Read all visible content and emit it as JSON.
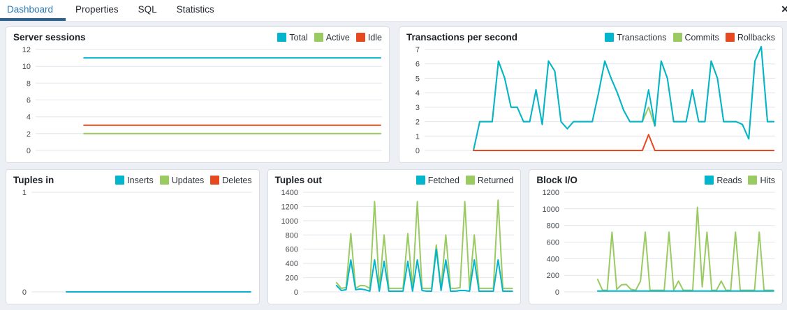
{
  "tabs": {
    "items": [
      {
        "label": "Dashboard"
      },
      {
        "label": "Properties"
      },
      {
        "label": "SQL"
      },
      {
        "label": "Statistics"
      }
    ],
    "active_index": 0,
    "close_icon": "✕"
  },
  "colors": {
    "accent_tab": "#2a77b0",
    "tab_underline": "#2e628c",
    "cyan": "#00b5cc",
    "green": "#9aca62",
    "red": "#e5491d",
    "grid": "#e2e5ee",
    "axis_text": "#43484d"
  },
  "panels": [
    {
      "title": "Server sessions",
      "legend": [
        {
          "label": "Total",
          "color": "#00b5cc"
        },
        {
          "label": "Active",
          "color": "#9aca62"
        },
        {
          "label": "Idle",
          "color": "#e5491d"
        }
      ]
    },
    {
      "title": "Transactions per second",
      "legend": [
        {
          "label": "Transactions",
          "color": "#00b5cc"
        },
        {
          "label": "Commits",
          "color": "#9aca62"
        },
        {
          "label": "Rollbacks",
          "color": "#e5491d"
        }
      ]
    },
    {
      "title": "Tuples in",
      "legend": [
        {
          "label": "Inserts",
          "color": "#00b5cc"
        },
        {
          "label": "Updates",
          "color": "#9aca62"
        },
        {
          "label": "Deletes",
          "color": "#e5491d"
        }
      ]
    },
    {
      "title": "Tuples out",
      "legend": [
        {
          "label": "Fetched",
          "color": "#00b5cc"
        },
        {
          "label": "Returned",
          "color": "#9aca62"
        }
      ]
    },
    {
      "title": "Block I/O",
      "legend": [
        {
          "label": "Reads",
          "color": "#00b5cc"
        },
        {
          "label": "Hits",
          "color": "#9aca62"
        }
      ]
    }
  ],
  "chart_data": [
    {
      "type": "line",
      "title": "Server sessions",
      "ylim": [
        0,
        12
      ],
      "yticks": [
        0,
        2,
        4,
        6,
        8,
        10,
        12
      ],
      "xlabel": "",
      "ylabel": "",
      "grid": true,
      "legend_position": "top-right",
      "label_w": 34,
      "start_frac": 0.14,
      "series": [
        {
          "name": "Active",
          "color": "#9aca62",
          "values": [
            2,
            2
          ]
        },
        {
          "name": "Idle",
          "color": "#e5491d",
          "values": [
            3,
            3
          ]
        },
        {
          "name": "Total",
          "color": "#00b5cc",
          "values": [
            11,
            11
          ]
        }
      ]
    },
    {
      "type": "line",
      "title": "Transactions per second",
      "ylim": [
        0,
        7
      ],
      "yticks": [
        0,
        1,
        2,
        3,
        4,
        5,
        6,
        7
      ],
      "xlabel": "",
      "ylabel": "",
      "grid": true,
      "legend_position": "top-right",
      "label_w": 28,
      "start_frac": 0.14,
      "series": [
        {
          "name": "Commits",
          "color": "#9aca62",
          "values": [
            0,
            2,
            2,
            2,
            6.2,
            5,
            3,
            3,
            2,
            2,
            4.2,
            1.8,
            6.2,
            5.5,
            2,
            1.5,
            2,
            2,
            2,
            2,
            4,
            6.2,
            5,
            4,
            2.8,
            2,
            2,
            2,
            3,
            1.7,
            6.2,
            5,
            2,
            2,
            2,
            4.2,
            2,
            2,
            6.2,
            5,
            2,
            2,
            2,
            1.8,
            0.8,
            6.2,
            7.2,
            2,
            2
          ]
        },
        {
          "name": "Transactions",
          "color": "#00b5cc",
          "values": [
            0,
            2,
            2,
            2,
            6.2,
            5,
            3,
            3,
            2,
            2,
            4.2,
            1.8,
            6.2,
            5.5,
            2,
            1.5,
            2,
            2,
            2,
            2,
            4,
            6.2,
            5,
            4,
            2.8,
            2,
            2,
            2,
            4.2,
            1.7,
            6.2,
            5,
            2,
            2,
            2,
            4.2,
            2,
            2,
            6.2,
            5,
            2,
            2,
            2,
            1.8,
            0.8,
            6.2,
            7.2,
            2,
            2
          ]
        },
        {
          "name": "Rollbacks",
          "color": "#e5491d",
          "values": [
            0,
            0,
            0,
            0,
            0,
            0,
            0,
            0,
            0,
            0,
            0,
            0,
            0,
            0,
            0,
            0,
            0,
            0,
            0,
            0,
            0,
            0,
            0,
            0,
            0,
            0,
            0,
            0,
            1.1,
            0,
            0,
            0,
            0,
            0,
            0,
            0,
            0,
            0,
            0,
            0,
            0,
            0,
            0,
            0,
            0,
            0,
            0,
            0,
            0
          ]
        }
      ]
    },
    {
      "type": "line",
      "title": "Tuples in",
      "ylim": [
        0,
        1
      ],
      "yticks": [
        0,
        1
      ],
      "xlabel": "",
      "ylabel": "",
      "grid": true,
      "legend_position": "top-right",
      "label_w": 28,
      "start_frac": 0.16,
      "series": [
        {
          "name": "Deletes",
          "color": "#e5491d",
          "values": [
            0,
            0
          ]
        },
        {
          "name": "Updates",
          "color": "#9aca62",
          "values": [
            0,
            0
          ]
        },
        {
          "name": "Inserts",
          "color": "#00b5cc",
          "values": [
            0,
            0
          ]
        }
      ]
    },
    {
      "type": "line",
      "title": "Tuples out",
      "ylim": [
        0,
        1400
      ],
      "yticks": [
        0,
        200,
        400,
        600,
        800,
        1000,
        1200,
        1400
      ],
      "xlabel": "",
      "ylabel": "",
      "grid": true,
      "legend_position": "top-right",
      "label_w": 42,
      "start_frac": 0.16,
      "series": [
        {
          "name": "Returned",
          "color": "#9aca62",
          "values": [
            130,
            50,
            60,
            820,
            50,
            90,
            85,
            50,
            1270,
            50,
            800,
            50,
            50,
            50,
            50,
            820,
            50,
            1270,
            50,
            50,
            50,
            660,
            50,
            800,
            50,
            50,
            60,
            1270,
            50,
            800,
            50,
            50,
            50,
            50,
            1290,
            50,
            50,
            50
          ]
        },
        {
          "name": "Fetched",
          "color": "#00b5cc",
          "values": [
            90,
            20,
            30,
            450,
            30,
            40,
            30,
            10,
            450,
            10,
            430,
            10,
            10,
            10,
            10,
            430,
            10,
            450,
            20,
            10,
            10,
            600,
            20,
            450,
            10,
            10,
            20,
            20,
            10,
            450,
            10,
            10,
            10,
            10,
            450,
            10,
            10,
            10
          ]
        }
      ]
    },
    {
      "type": "line",
      "title": "Block I/O",
      "ylim": [
        0,
        1200
      ],
      "yticks": [
        0,
        200,
        400,
        600,
        800,
        1000,
        1200
      ],
      "xlabel": "",
      "ylabel": "",
      "grid": true,
      "legend_position": "top-right",
      "label_w": 42,
      "start_frac": 0.16,
      "series": [
        {
          "name": "Hits",
          "color": "#9aca62",
          "values": [
            150,
            20,
            20,
            720,
            30,
            85,
            90,
            30,
            20,
            130,
            720,
            20,
            20,
            20,
            20,
            720,
            20,
            130,
            20,
            20,
            20,
            1020,
            60,
            720,
            20,
            20,
            130,
            20,
            20,
            720,
            20,
            20,
            20,
            20,
            720,
            20,
            20,
            20
          ]
        },
        {
          "name": "Reads",
          "color": "#00b5cc",
          "values": [
            10,
            10,
            10,
            10,
            10,
            10,
            10,
            10,
            10,
            10,
            10,
            10,
            10,
            10,
            10,
            10,
            10,
            10,
            10,
            10,
            10,
            10,
            10,
            10,
            10,
            10,
            10,
            10,
            10,
            10,
            10,
            10,
            10,
            10,
            10,
            10,
            10,
            10
          ]
        }
      ]
    }
  ]
}
